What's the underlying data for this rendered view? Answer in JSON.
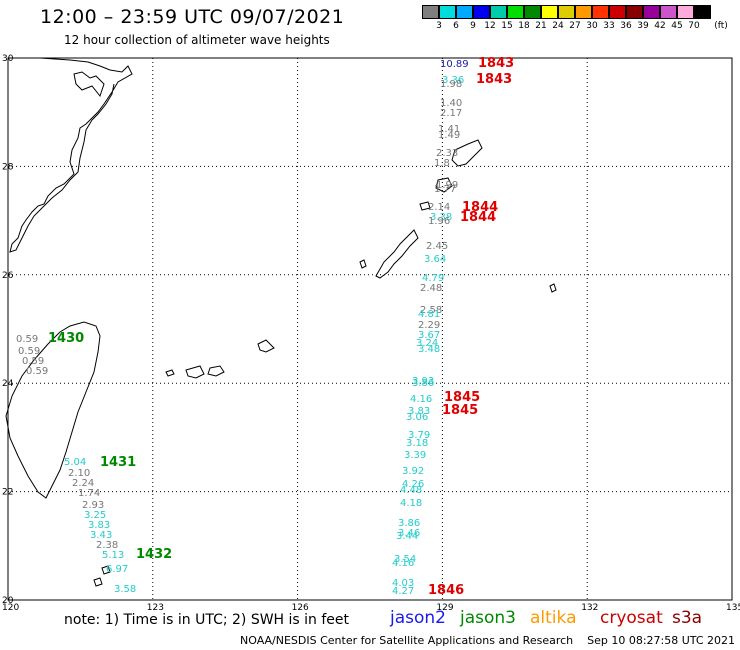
{
  "header": {
    "title": "12:00 – 23:59 UTC 09/07/2021",
    "subtitle": "12 hour collection of altimeter wave heights"
  },
  "legend": {
    "colors": [
      "#7f7f7f",
      "#00dddd",
      "#00aaff",
      "#0000ee",
      "#00ccaa",
      "#00dd00",
      "#008800",
      "#ffff00",
      "#ddcc00",
      "#ff9900",
      "#ff3300",
      "#cc0000",
      "#880000",
      "#990099",
      "#cc55cc",
      "#ffaadd",
      "#000000"
    ],
    "labels": [
      "3",
      "6",
      "9",
      "12",
      "15",
      "18",
      "21",
      "24",
      "27",
      "30",
      "33",
      "36",
      "39",
      "42",
      "45",
      "70",
      "(ft)"
    ]
  },
  "map": {
    "lat_labels": [
      "30",
      "28",
      "26",
      "24",
      "22",
      "20"
    ],
    "lon_labels": [
      "120",
      "123",
      "126",
      "129",
      "132",
      "135"
    ],
    "observations": [
      {
        "text": "10.89",
        "color": "#1a1aaa"
      },
      {
        "text": "1843",
        "color": "#e00000",
        "bold": true
      },
      {
        "text": "3.36",
        "color": "#22cccc"
      },
      {
        "text": "1.98",
        "color": "#777777"
      },
      {
        "text": "1843",
        "color": "#e00000",
        "bold": true
      },
      {
        "text": "1.40",
        "color": "#777777"
      },
      {
        "text": "2.17",
        "color": "#777777"
      },
      {
        "text": "1.41",
        "color": "#777777"
      },
      {
        "text": "1.49",
        "color": "#777777"
      },
      {
        "text": "2.33",
        "color": "#777777"
      },
      {
        "text": "1.8",
        "color": "#777777"
      },
      {
        "text": "1.99",
        "color": "#777777"
      },
      {
        "text": "1.77",
        "color": "#777777"
      },
      {
        "text": "2.14",
        "color": "#777777"
      },
      {
        "text": "1844",
        "color": "#e00000",
        "bold": true
      },
      {
        "text": "3.38",
        "color": "#22cccc"
      },
      {
        "text": "1.96",
        "color": "#777777"
      },
      {
        "text": "1844",
        "color": "#e00000",
        "bold": true
      },
      {
        "text": "2.45",
        "color": "#777777"
      },
      {
        "text": "3.64",
        "color": "#22cccc"
      },
      {
        "text": "4.79",
        "color": "#22cccc"
      },
      {
        "text": "2.48",
        "color": "#777777"
      },
      {
        "text": "2.58",
        "color": "#777777"
      },
      {
        "text": "4.81",
        "color": "#22cccc"
      },
      {
        "text": "2.29",
        "color": "#777777"
      },
      {
        "text": "3.67",
        "color": "#22cccc"
      },
      {
        "text": "3.24",
        "color": "#22cccc"
      },
      {
        "text": "3.48",
        "color": "#22cccc"
      },
      {
        "text": "3.93",
        "color": "#22cccc"
      },
      {
        "text": "3.86",
        "color": "#22cccc"
      },
      {
        "text": "4.16",
        "color": "#22cccc"
      },
      {
        "text": "1845",
        "color": "#e00000",
        "bold": true
      },
      {
        "text": "3.83",
        "color": "#22cccc"
      },
      {
        "text": "1845",
        "color": "#e00000",
        "bold": true
      },
      {
        "text": "3.06",
        "color": "#22cccc"
      },
      {
        "text": "3.79",
        "color": "#22cccc"
      },
      {
        "text": "3.18",
        "color": "#22cccc"
      },
      {
        "text": "3.39",
        "color": "#22cccc"
      },
      {
        "text": "3.92",
        "color": "#22cccc"
      },
      {
        "text": "4.26",
        "color": "#22cccc"
      },
      {
        "text": "4.48",
        "color": "#22cccc"
      },
      {
        "text": "4.18",
        "color": "#22cccc"
      },
      {
        "text": "3.86",
        "color": "#22cccc"
      },
      {
        "text": "3.46",
        "color": "#22cccc"
      },
      {
        "text": "3.44",
        "color": "#22cccc"
      },
      {
        "text": "3.54",
        "color": "#22cccc"
      },
      {
        "text": "4.16",
        "color": "#22cccc"
      },
      {
        "text": "4.03",
        "color": "#22cccc"
      },
      {
        "text": "4.27",
        "color": "#22cccc"
      },
      {
        "text": "1846",
        "color": "#e00000",
        "bold": true
      },
      {
        "text": "0.59",
        "color": "#777777"
      },
      {
        "text": "1430",
        "color": "#008800",
        "bold": true
      },
      {
        "text": "0.59",
        "color": "#777777"
      },
      {
        "text": "0.59",
        "color": "#777777"
      },
      {
        "text": "0.59",
        "color": "#777777"
      },
      {
        "text": "5.04",
        "color": "#22cccc"
      },
      {
        "text": "1431",
        "color": "#008800",
        "bold": true
      },
      {
        "text": "2.10",
        "color": "#777777"
      },
      {
        "text": "2.24",
        "color": "#777777"
      },
      {
        "text": "1.74",
        "color": "#777777"
      },
      {
        "text": "2.93",
        "color": "#777777"
      },
      {
        "text": "3.25",
        "color": "#22cccc"
      },
      {
        "text": "3.83",
        "color": "#22cccc"
      },
      {
        "text": "3.43",
        "color": "#22cccc"
      },
      {
        "text": "2.38",
        "color": "#777777"
      },
      {
        "text": "5.13",
        "color": "#22cccc"
      },
      {
        "text": "1432",
        "color": "#008800",
        "bold": true
      },
      {
        "text": "6.97",
        "color": "#22cccc"
      },
      {
        "text": "3.58",
        "color": "#22cccc"
      }
    ]
  },
  "note": "note:  1) Time is in UTC;  2) SWH is in feet",
  "satellites": [
    {
      "name": "jason2",
      "color": "#1a1aee"
    },
    {
      "name": "jason3",
      "color": "#008800"
    },
    {
      "name": "altika",
      "color": "#ff9900"
    },
    {
      "name": "cryosat",
      "color": "#cc0000"
    },
    {
      "name": "s3a",
      "color": "#880000"
    }
  ],
  "footer": "NOAA/NESDIS Center for Satellite Applications and Research    Sep 10 08:27:58 UTC 2021"
}
